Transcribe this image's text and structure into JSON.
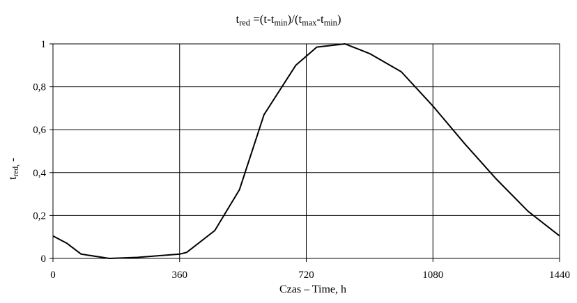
{
  "chart_data": {
    "type": "line",
    "title": {
      "parts": [
        {
          "text": "t",
          "sub": "red"
        },
        {
          "text": " =(t-t",
          "sub": "min"
        },
        {
          "text": ")/(t",
          "sub": "max"
        },
        {
          "text": "-t",
          "sub": "min"
        },
        {
          "text": ")",
          "sub": ""
        }
      ]
    },
    "ylabel": {
      "parts": [
        {
          "text": "t",
          "sub": "red,"
        },
        {
          "text": " -",
          "sub": ""
        }
      ]
    },
    "xlabel": "Czas – Time, h",
    "xlim": [
      0,
      1440
    ],
    "ylim": [
      0,
      1
    ],
    "xticks": [
      0,
      360,
      720,
      1080,
      1440
    ],
    "xtick_labels": [
      "0",
      "360",
      "720",
      "1080",
      "1440"
    ],
    "yticks": [
      0,
      0.2,
      0.4,
      0.6,
      0.8,
      1
    ],
    "ytick_labels": [
      "0",
      "0,2",
      "0,4",
      "0,6",
      "0,8",
      "1"
    ],
    "grid": true,
    "line_color": "#000000",
    "series": [
      {
        "x": [
          0,
          40,
          80,
          160,
          240,
          360,
          380,
          460,
          530,
          600,
          690,
          750,
          830,
          900,
          990,
          1080,
          1170,
          1260,
          1350,
          1440
        ],
        "y": [
          0.105,
          0.07,
          0.02,
          0.0,
          0.005,
          0.02,
          0.028,
          0.13,
          0.32,
          0.67,
          0.9,
          0.985,
          1.0,
          0.955,
          0.87,
          0.71,
          0.535,
          0.37,
          0.22,
          0.105
        ]
      }
    ]
  }
}
